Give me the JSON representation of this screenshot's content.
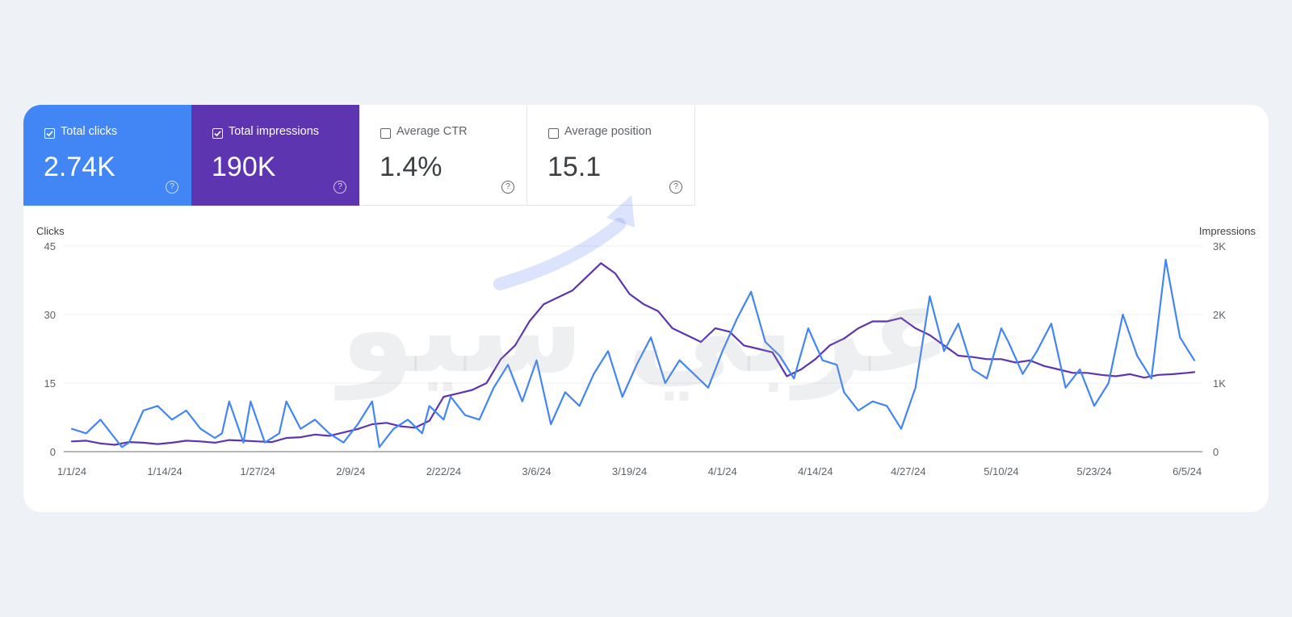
{
  "metrics": [
    {
      "label": "Total clicks",
      "value": "2.74K",
      "checked": true,
      "color": "#4285f4"
    },
    {
      "label": "Total impressions",
      "value": "190K",
      "checked": true,
      "color": "#5e35b1"
    },
    {
      "label": "Average CTR",
      "value": "1.4%",
      "checked": false
    },
    {
      "label": "Average position",
      "value": "15.1",
      "checked": false
    }
  ],
  "help_glyph": "?",
  "watermark": "عربي سيو",
  "chart_data": {
    "type": "line",
    "left_axis": {
      "title": "Clicks",
      "ticks": [
        0,
        15,
        30,
        45
      ],
      "tick_labels": [
        "0",
        "15",
        "30",
        "45"
      ],
      "range": [
        0,
        45
      ]
    },
    "right_axis": {
      "title": "Impressions",
      "ticks": [
        0,
        1000,
        2000,
        3000
      ],
      "tick_labels": [
        "0",
        "1K",
        "2K",
        "3K"
      ],
      "range": [
        0,
        3000
      ]
    },
    "x_tick_labels": [
      "1/1/24",
      "1/14/24",
      "1/27/24",
      "2/9/24",
      "2/22/24",
      "3/6/24",
      "3/19/24",
      "4/1/24",
      "4/14/24",
      "4/27/24",
      "5/10/24",
      "5/23/24",
      "6/5/24"
    ],
    "x_tick_days": [
      0,
      13,
      26,
      39,
      52,
      65,
      78,
      91,
      104,
      117,
      130,
      143,
      156
    ],
    "grid": true,
    "series": [
      {
        "name": "Total clicks",
        "axis": "left",
        "color": "#4285f4",
        "x": [
          0,
          2,
          4,
          6,
          7,
          8,
          10,
          12,
          14,
          16,
          18,
          20,
          21,
          22,
          24,
          25,
          27,
          29,
          30,
          32,
          34,
          36,
          38,
          40,
          42,
          43,
          45,
          47,
          49,
          50,
          52,
          53,
          55,
          57,
          59,
          61,
          63,
          65,
          67,
          69,
          71,
          73,
          75,
          77,
          79,
          81,
          83,
          85,
          87,
          89,
          91,
          93,
          95,
          97,
          99,
          101,
          103,
          105,
          107,
          108,
          110,
          112,
          114,
          116,
          118,
          120,
          122,
          124,
          126,
          128,
          130,
          131,
          133,
          135,
          137,
          139,
          141,
          143,
          145,
          147,
          149,
          151,
          153,
          155,
          157
        ],
        "y": [
          5,
          4,
          7,
          3,
          1,
          2,
          9,
          10,
          7,
          9,
          5,
          3,
          4,
          11,
          2,
          11,
          2,
          4,
          11,
          5,
          7,
          4,
          2,
          6,
          11,
          1,
          5,
          7,
          4,
          10,
          7,
          12,
          8,
          7,
          14,
          19,
          11,
          20,
          6,
          13,
          10,
          17,
          22,
          12,
          19,
          25,
          15,
          20,
          17,
          14,
          22,
          29,
          35,
          24,
          21,
          16,
          27,
          20,
          19,
          13,
          9,
          11,
          10,
          5,
          14,
          34,
          22,
          28,
          18,
          16,
          27,
          24,
          17,
          22,
          28,
          14,
          18,
          10,
          15,
          30,
          21,
          16,
          42,
          25,
          20
        ]
      },
      {
        "name": "Total impressions",
        "axis": "right",
        "color": "#5e35b1",
        "x": [
          0,
          2,
          4,
          6,
          8,
          10,
          12,
          14,
          16,
          18,
          20,
          22,
          24,
          26,
          28,
          30,
          32,
          34,
          36,
          38,
          40,
          42,
          44,
          46,
          48,
          50,
          52,
          54,
          56,
          58,
          60,
          62,
          64,
          66,
          68,
          70,
          72,
          74,
          76,
          78,
          80,
          82,
          84,
          86,
          88,
          90,
          92,
          94,
          96,
          98,
          100,
          102,
          104,
          106,
          108,
          110,
          112,
          114,
          116,
          118,
          120,
          122,
          124,
          126,
          128,
          130,
          132,
          134,
          136,
          138,
          140,
          142,
          144,
          146,
          148,
          150,
          152,
          154,
          156,
          157
        ],
        "y": [
          150,
          160,
          120,
          100,
          140,
          130,
          110,
          130,
          160,
          150,
          130,
          170,
          160,
          150,
          140,
          200,
          210,
          250,
          230,
          280,
          330,
          400,
          420,
          370,
          350,
          450,
          800,
          850,
          900,
          1000,
          1350,
          1550,
          1900,
          2150,
          2250,
          2350,
          2550,
          2750,
          2600,
          2300,
          2150,
          2050,
          1800,
          1700,
          1600,
          1800,
          1750,
          1550,
          1500,
          1450,
          1100,
          1200,
          1350,
          1550,
          1650,
          1800,
          1900,
          1900,
          1950,
          1800,
          1700,
          1550,
          1400,
          1380,
          1350,
          1350,
          1300,
          1330,
          1250,
          1200,
          1150,
          1150,
          1120,
          1100,
          1130,
          1080,
          1120,
          1130,
          1150,
          1160
        ]
      }
    ]
  }
}
